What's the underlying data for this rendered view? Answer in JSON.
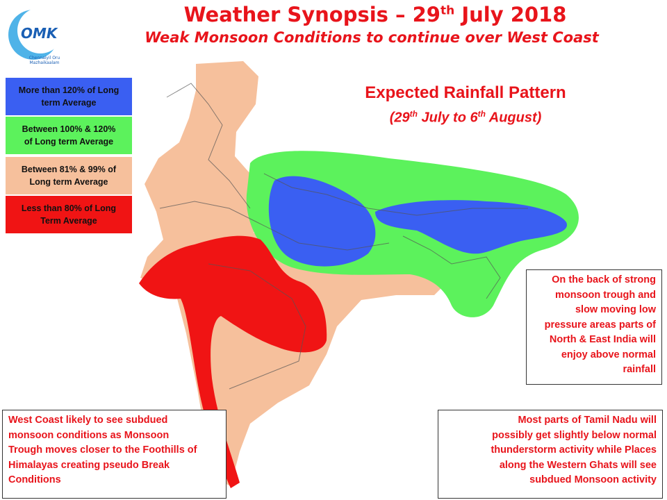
{
  "logo": {
    "text": "OMK",
    "subtext": "Chennaiyil Oru Mazhaikaalam"
  },
  "header": {
    "title": [
      "Weather Synopsis – 29",
      "th",
      " July 2018"
    ],
    "subtitle": "Weak Monsoon Conditions to continue over West Coast"
  },
  "legend": [
    {
      "label": [
        "More than 120% of Long",
        "term Average"
      ],
      "color": "#3a5ff2"
    },
    {
      "label": [
        "Between 100% & 120%",
        "of Long term Average"
      ],
      "color": "#5cf25c"
    },
    {
      "label": [
        "Between 81% & 99% of",
        "Long term Average"
      ],
      "color": "#f6c09c"
    },
    {
      "label": [
        "Less than 80% of Long",
        "Term Average"
      ],
      "color": "#f01414"
    }
  ],
  "pattern": {
    "title": "Expected Rainfall Pattern",
    "dates": [
      "(29",
      "th",
      " July to 6",
      "th",
      " August)"
    ]
  },
  "notes": {
    "north": [
      "On the back of strong",
      "monsoon trough and",
      "slow moving low",
      "pressure areas parts of",
      "North & East India will",
      "enjoy above normal",
      "rainfall"
    ],
    "west": [
      "West Coast likely to see subdued",
      "monsoon conditions as  Monsoon",
      "Trough moves closer to the Foothills of",
      "Himalayas creating pseudo Break",
      "Conditions"
    ],
    "tamil_nadu": [
      "Most parts of Tamil Nadu will",
      "possibly get slightly below normal",
      "thunderstorm activity while Places",
      "along the Western Ghats will see",
      "subdued Monsoon activity"
    ]
  }
}
